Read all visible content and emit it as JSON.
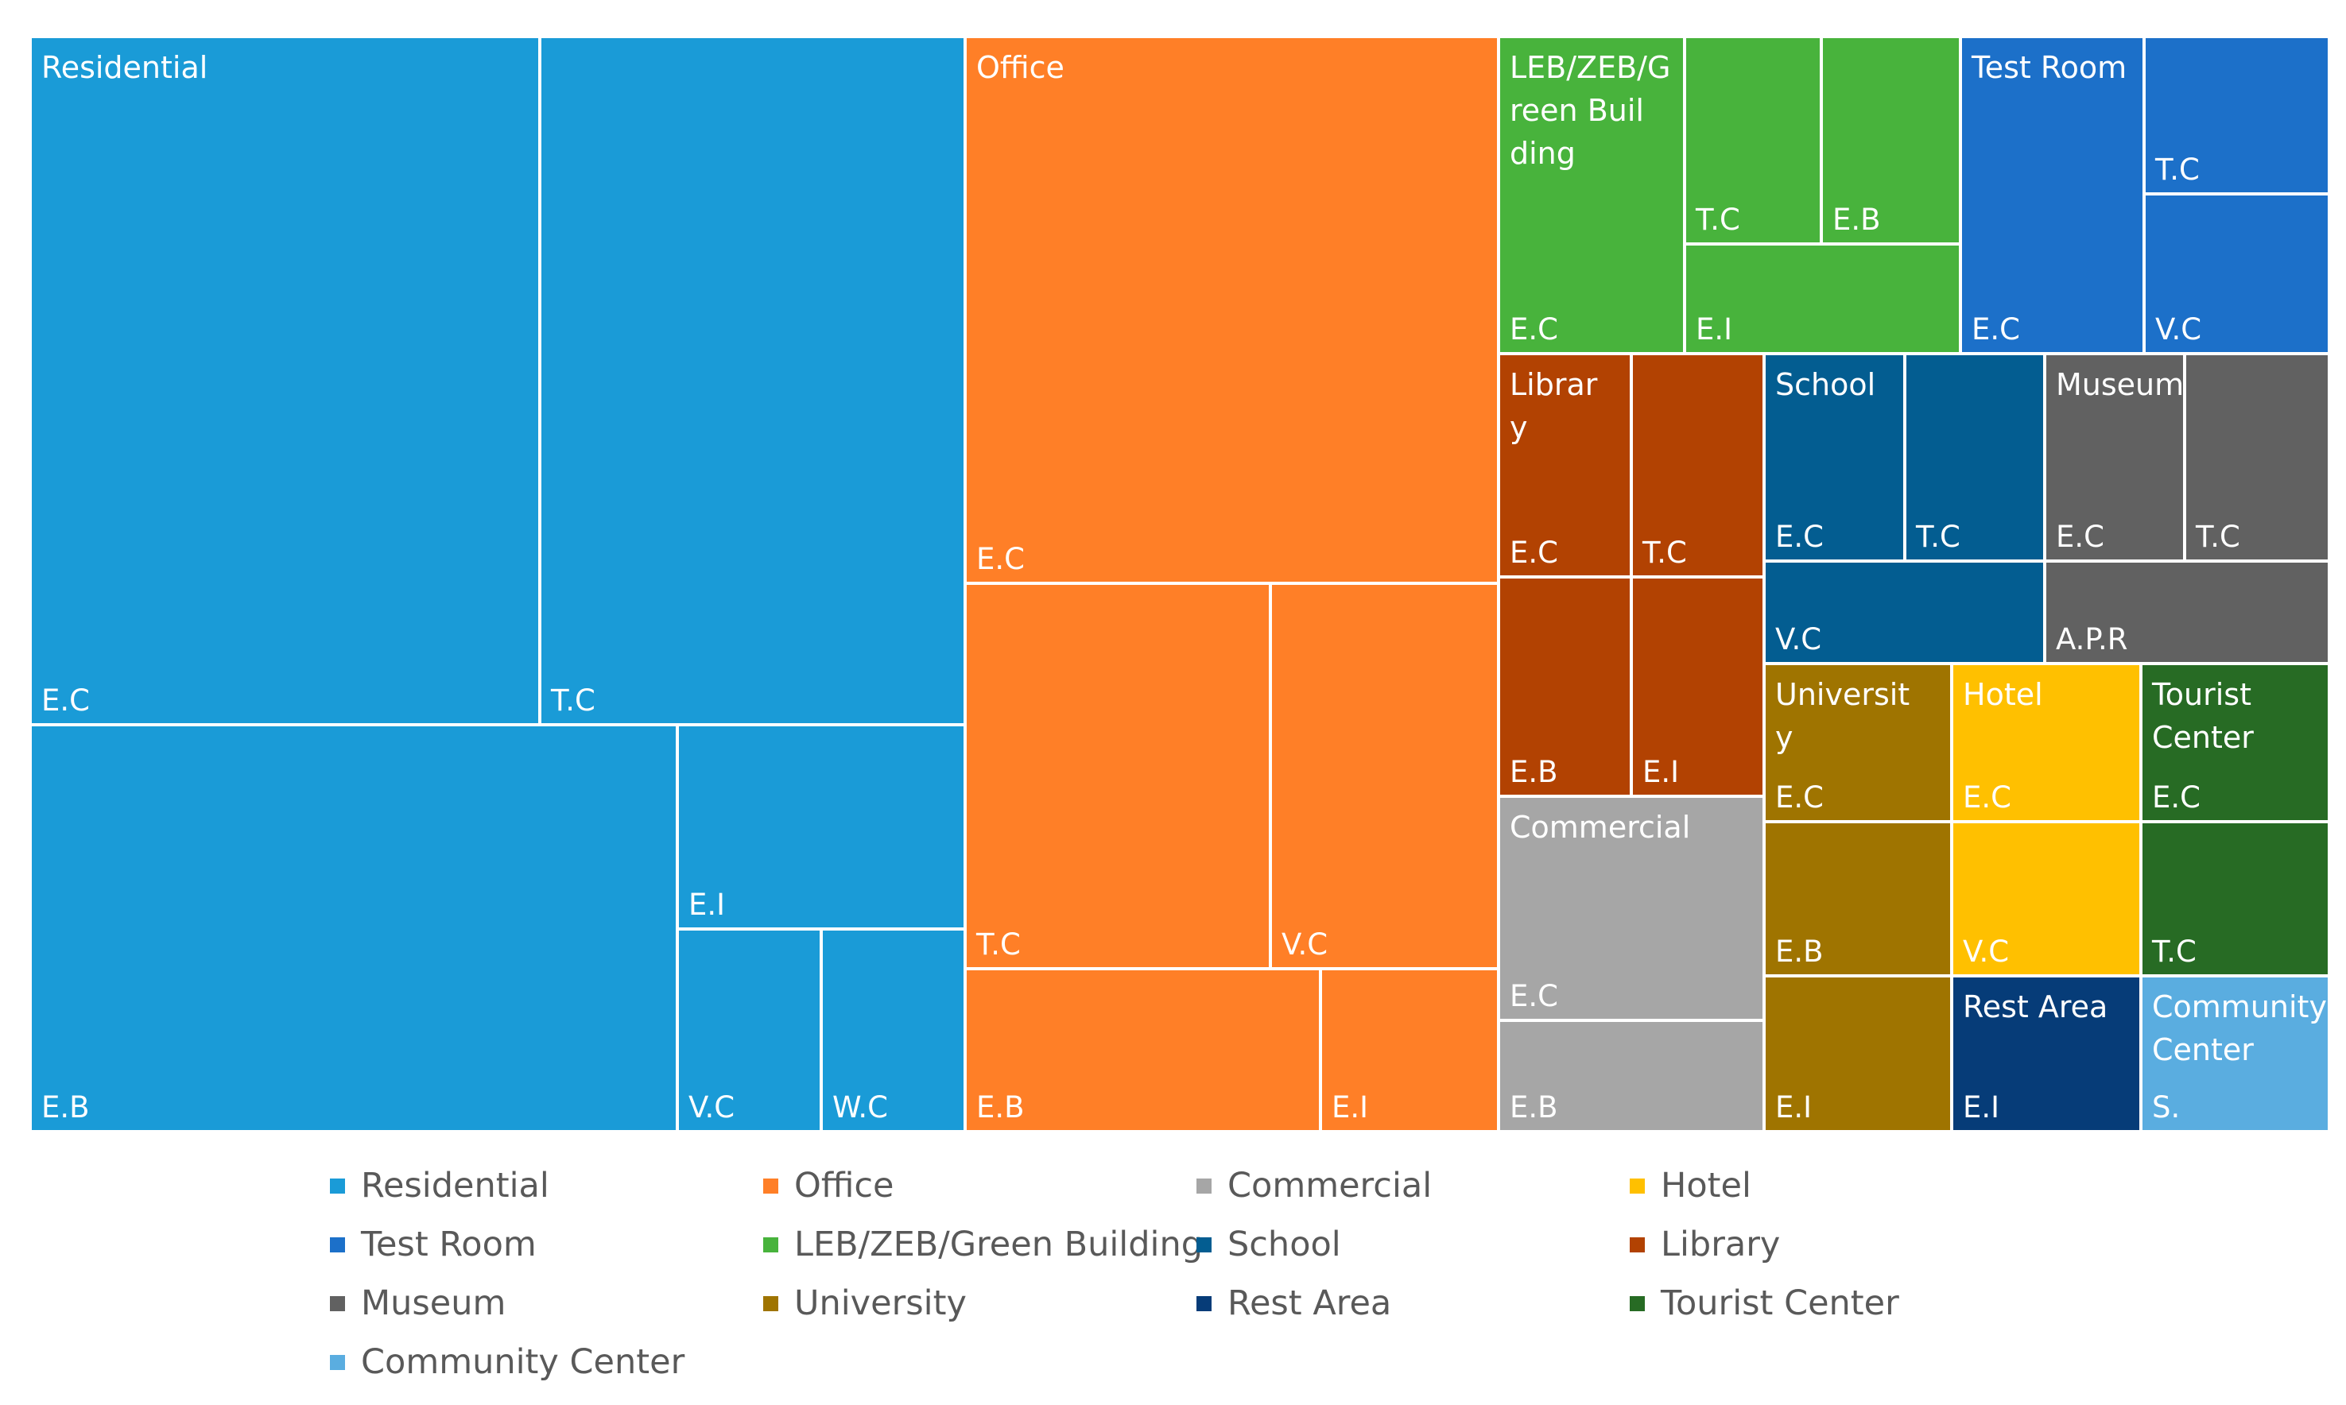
{
  "chart_data": {
    "type": "treemap",
    "groups": [
      {
        "name": "Residential",
        "color": "#1a9bd7",
        "tiles": [
          {
            "label": "E.C",
            "show_group": true
          },
          {
            "label": "T.C"
          },
          {
            "label": "E.B"
          },
          {
            "label": "E.I"
          },
          {
            "label": "V.C"
          },
          {
            "label": "W.C"
          }
        ]
      },
      {
        "name": "Office",
        "color": "#ff7f27",
        "tiles": [
          {
            "label": "E.C",
            "show_group": true
          },
          {
            "label": "T.C"
          },
          {
            "label": "V.C"
          },
          {
            "label": "E.B"
          },
          {
            "label": "E.I"
          }
        ]
      },
      {
        "name": "LEB/ZEB/Green Building",
        "color": "#48b33c",
        "tiles": [
          {
            "label": "E.C",
            "show_group": true
          },
          {
            "label": "T.C"
          },
          {
            "label": "E.B"
          },
          {
            "label": "E.I"
          }
        ]
      },
      {
        "name": "Test Room",
        "color": "#1c70c9",
        "tiles": [
          {
            "label": "E.C",
            "show_group": true
          },
          {
            "label": "T.C"
          },
          {
            "label": "V.C"
          }
        ]
      },
      {
        "name": "Library",
        "color": "#b24202",
        "tiles": [
          {
            "label": "E.C",
            "show_group": true
          },
          {
            "label": "T.C"
          },
          {
            "label": "E.B"
          },
          {
            "label": "E.I"
          }
        ]
      },
      {
        "name": "School",
        "color": "#035d91",
        "tiles": [
          {
            "label": "E.C",
            "show_group": true
          },
          {
            "label": "T.C"
          },
          {
            "label": "V.C"
          }
        ]
      },
      {
        "name": "Museum",
        "color": "#616161",
        "tiles": [
          {
            "label": "E.C",
            "show_group": true
          },
          {
            "label": "T.C"
          },
          {
            "label": "A.P.R"
          }
        ]
      },
      {
        "name": "Commercial",
        "color": "#a6a6a6",
        "tiles": [
          {
            "label": "E.C",
            "show_group": true
          },
          {
            "label": "E.B"
          }
        ]
      },
      {
        "name": "University",
        "color": "#9f7400",
        "tiles": [
          {
            "label": "E.C",
            "show_group": true
          },
          {
            "label": "E.B"
          },
          {
            "label": "E.I"
          }
        ]
      },
      {
        "name": "Hotel",
        "color": "#ffc000",
        "tiles": [
          {
            "label": "E.C",
            "show_group": true
          },
          {
            "label": "V.C"
          }
        ]
      },
      {
        "name": "Tourist Center",
        "color": "#276b24",
        "tiles": [
          {
            "label": "E.C",
            "show_group": true
          },
          {
            "label": "T.C"
          }
        ]
      },
      {
        "name": "Rest Area",
        "color": "#063c78",
        "tiles": [
          {
            "label": "E.I",
            "show_group": true
          }
        ]
      },
      {
        "name": "Community Center",
        "color": "#5aade0",
        "tiles": [
          {
            "label": "S.",
            "show_group": true
          }
        ]
      }
    ],
    "legend": {
      "placement": "bottom",
      "columns": 4,
      "items": [
        {
          "label": "Residential",
          "color": "#1a9bd7"
        },
        {
          "label": "Office",
          "color": "#ff7f27"
        },
        {
          "label": "Commercial",
          "color": "#a6a6a6"
        },
        {
          "label": "Hotel",
          "color": "#ffc000"
        },
        {
          "label": "Test Room",
          "color": "#1c70c9"
        },
        {
          "label": "LEB/ZEB/Green Building",
          "color": "#48b33c"
        },
        {
          "label": "School",
          "color": "#035d91"
        },
        {
          "label": "Library",
          "color": "#b24202"
        },
        {
          "label": "Museum",
          "color": "#616161"
        },
        {
          "label": "University",
          "color": "#9f7400"
        },
        {
          "label": "Rest Area",
          "color": "#063c78"
        },
        {
          "label": "Tourist Center",
          "color": "#276b24"
        },
        {
          "label": "Community Center",
          "color": "#5aade0"
        }
      ]
    }
  }
}
